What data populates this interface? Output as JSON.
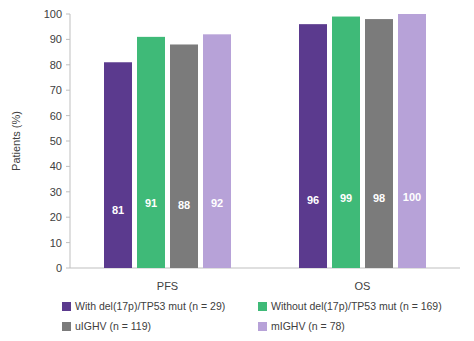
{
  "chart_data": {
    "type": "bar",
    "y_label": "Patients (%)",
    "categories": [
      "PFS",
      "OS"
    ],
    "series": [
      {
        "name": "With del(17p)/TP53 mut (n = 29)",
        "color": "#5b3a8e",
        "values": [
          81,
          96
        ]
      },
      {
        "name": "Without del(17p)/TP53 mut (n = 169)",
        "color": "#3fba78",
        "values": [
          91,
          99
        ]
      },
      {
        "name": "uIGHV (n = 119)",
        "color": "#7b7b7b",
        "values": [
          88,
          98
        ]
      },
      {
        "name": "mIGHV (n = 78)",
        "color": "#b7a2d8",
        "values": [
          92,
          100
        ]
      }
    ],
    "ylim": [
      0,
      100
    ],
    "yticks": [
      0,
      10,
      20,
      30,
      40,
      50,
      60,
      70,
      80,
      90,
      100
    ],
    "grid": false,
    "legend": "bottom",
    "data_labels": true
  }
}
